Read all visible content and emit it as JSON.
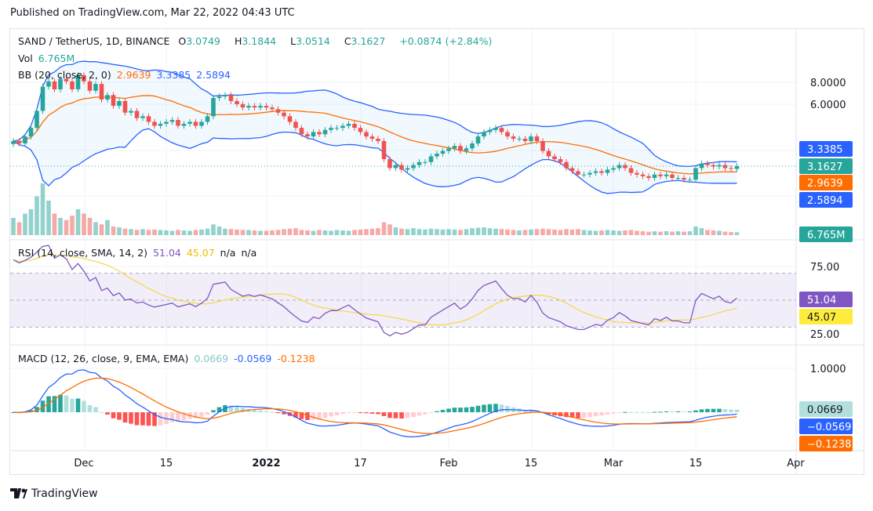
{
  "published": "Published on TradingView.com, Mar 22, 2022 04:43 UTC",
  "brand": "TradingView",
  "legend": {
    "symbol": "SAND / TetherUS, 1D, BINANCE",
    "o_label": "O",
    "o": "3.0749",
    "h_label": "H",
    "h": "3.1844",
    "l_label": "L",
    "l": "3.0514",
    "c_label": "C",
    "c": "3.1627",
    "change": "+0.0874 (+2.84%)",
    "vol_label": "Vol",
    "vol": "6.765M",
    "bb_label": "BB (20, close, 2, 0)",
    "bb_basis": "2.9639",
    "bb_upper": "3.3385",
    "bb_lower": "2.5894"
  },
  "rsi_legend": {
    "label": "RSI (14, close, SMA, 14, 2)",
    "rsi": "51.04",
    "sma": "45.07",
    "na1": "n/a",
    "na2": "n/a"
  },
  "macd_legend": {
    "label": "MACD (12, 26, close, 9, EMA, EMA)",
    "hist": "0.0669",
    "macd": "-0.0569",
    "signal": "-0.1238"
  },
  "price_scale": {
    "ticks": [
      "8.0000",
      "6.0000"
    ],
    "badges": [
      {
        "text": "3.3385",
        "color": "#2962ff"
      },
      {
        "text": "3.1627",
        "color": "#26a69a"
      },
      {
        "text": "2.9639",
        "color": "#ff6d00"
      },
      {
        "text": "2.5894",
        "color": "#2962ff"
      },
      {
        "text": "6.765M",
        "color": "#26a69a"
      }
    ]
  },
  "rsi_scale": {
    "ticks": [
      "75.00",
      "25.00"
    ],
    "badges": [
      {
        "text": "51.04",
        "color": "#7e57c2"
      },
      {
        "text": "45.07",
        "color": "#ffeb3b"
      }
    ]
  },
  "macd_scale": {
    "ticks": [
      "1.0000"
    ],
    "badges": [
      {
        "text": "0.0669",
        "color": "#b2dfdb"
      },
      {
        "text": "−0.0569",
        "color": "#2962ff"
      },
      {
        "text": "−0.1238",
        "color": "#ff6d00"
      }
    ]
  },
  "time_axis": [
    {
      "label": "Dec",
      "day": 12
    },
    {
      "label": "15",
      "day": 26
    },
    {
      "label": "2022",
      "day": 43,
      "bold": true
    },
    {
      "label": "17",
      "day": 59
    },
    {
      "label": "Feb",
      "day": 74
    },
    {
      "label": "15",
      "day": 88
    },
    {
      "label": "Mar",
      "day": 102
    },
    {
      "label": "15",
      "day": 116
    },
    {
      "label": "Apr",
      "day": 133
    }
  ],
  "chart_data": {
    "type": "candlestick",
    "start_date": "2021-11-19",
    "end_date": "2022-03-22",
    "log_scale": true,
    "closes": [
      4.1,
      4.0,
      4.3,
      4.7,
      5.6,
      7.2,
      7.6,
      7.0,
      7.8,
      7.6,
      7.0,
      8.1,
      7.6,
      6.9,
      7.4,
      6.3,
      6.6,
      5.9,
      6.2,
      5.5,
      5.6,
      5.2,
      5.3,
      5.0,
      4.8,
      4.9,
      5.0,
      5.1,
      4.8,
      4.9,
      5.0,
      4.8,
      5.0,
      5.3,
      6.4,
      6.5,
      6.6,
      6.2,
      6.0,
      5.8,
      5.9,
      5.8,
      5.9,
      5.8,
      5.7,
      5.5,
      5.3,
      5.0,
      4.7,
      4.4,
      4.3,
      4.5,
      4.4,
      4.6,
      4.7,
      4.7,
      4.8,
      4.9,
      4.7,
      4.5,
      4.3,
      4.2,
      4.1,
      3.4,
      3.1,
      3.2,
      3.05,
      3.1,
      3.2,
      3.3,
      3.3,
      3.5,
      3.6,
      3.7,
      3.8,
      3.9,
      3.7,
      3.8,
      4.0,
      4.3,
      4.5,
      4.6,
      4.7,
      4.5,
      4.3,
      4.2,
      4.2,
      4.1,
      4.3,
      4.1,
      3.7,
      3.5,
      3.4,
      3.3,
      3.1,
      3.0,
      2.9,
      2.9,
      2.95,
      3.0,
      2.95,
      3.05,
      3.1,
      3.2,
      3.1,
      2.95,
      2.9,
      2.85,
      2.8,
      2.9,
      2.85,
      2.9,
      2.8,
      2.8,
      2.75,
      2.75,
      3.1,
      3.25,
      3.2,
      3.15,
      3.2,
      3.1,
      3.0749,
      3.1627
    ],
    "volumes_m": [
      40,
      30,
      50,
      60,
      90,
      120,
      80,
      50,
      40,
      35,
      45,
      60,
      50,
      40,
      30,
      25,
      35,
      20,
      18,
      15,
      14,
      12,
      14,
      12,
      13,
      12,
      11,
      10,
      12,
      11,
      10,
      12,
      13,
      15,
      25,
      20,
      15,
      14,
      13,
      12,
      12,
      11,
      10,
      10,
      11,
      12,
      14,
      15,
      16,
      12,
      11,
      10,
      12,
      11,
      10,
      12,
      11,
      10,
      12,
      13,
      14,
      15,
      16,
      30,
      25,
      18,
      15,
      14,
      16,
      14,
      13,
      15,
      14,
      13,
      14,
      13,
      12,
      14,
      16,
      17,
      18,
      16,
      15,
      14,
      13,
      12,
      11,
      12,
      13,
      14,
      15,
      14,
      13,
      12,
      14,
      13,
      14,
      12,
      11,
      10,
      11,
      12,
      11,
      10,
      11,
      12,
      10,
      9,
      8,
      9,
      8,
      9,
      8,
      9,
      8,
      9,
      20,
      16,
      12,
      11,
      10,
      8,
      7,
      6.765
    ],
    "colors": {
      "up": "#26a69a",
      "down": "#ef5350",
      "bb_basis": "#ff6d00",
      "bb_band": "#2962ff",
      "rsi": "#7e57c2",
      "rsi_ma": "#ffeb3b",
      "macd": "#2962ff",
      "signal": "#ff6d00"
    }
  }
}
